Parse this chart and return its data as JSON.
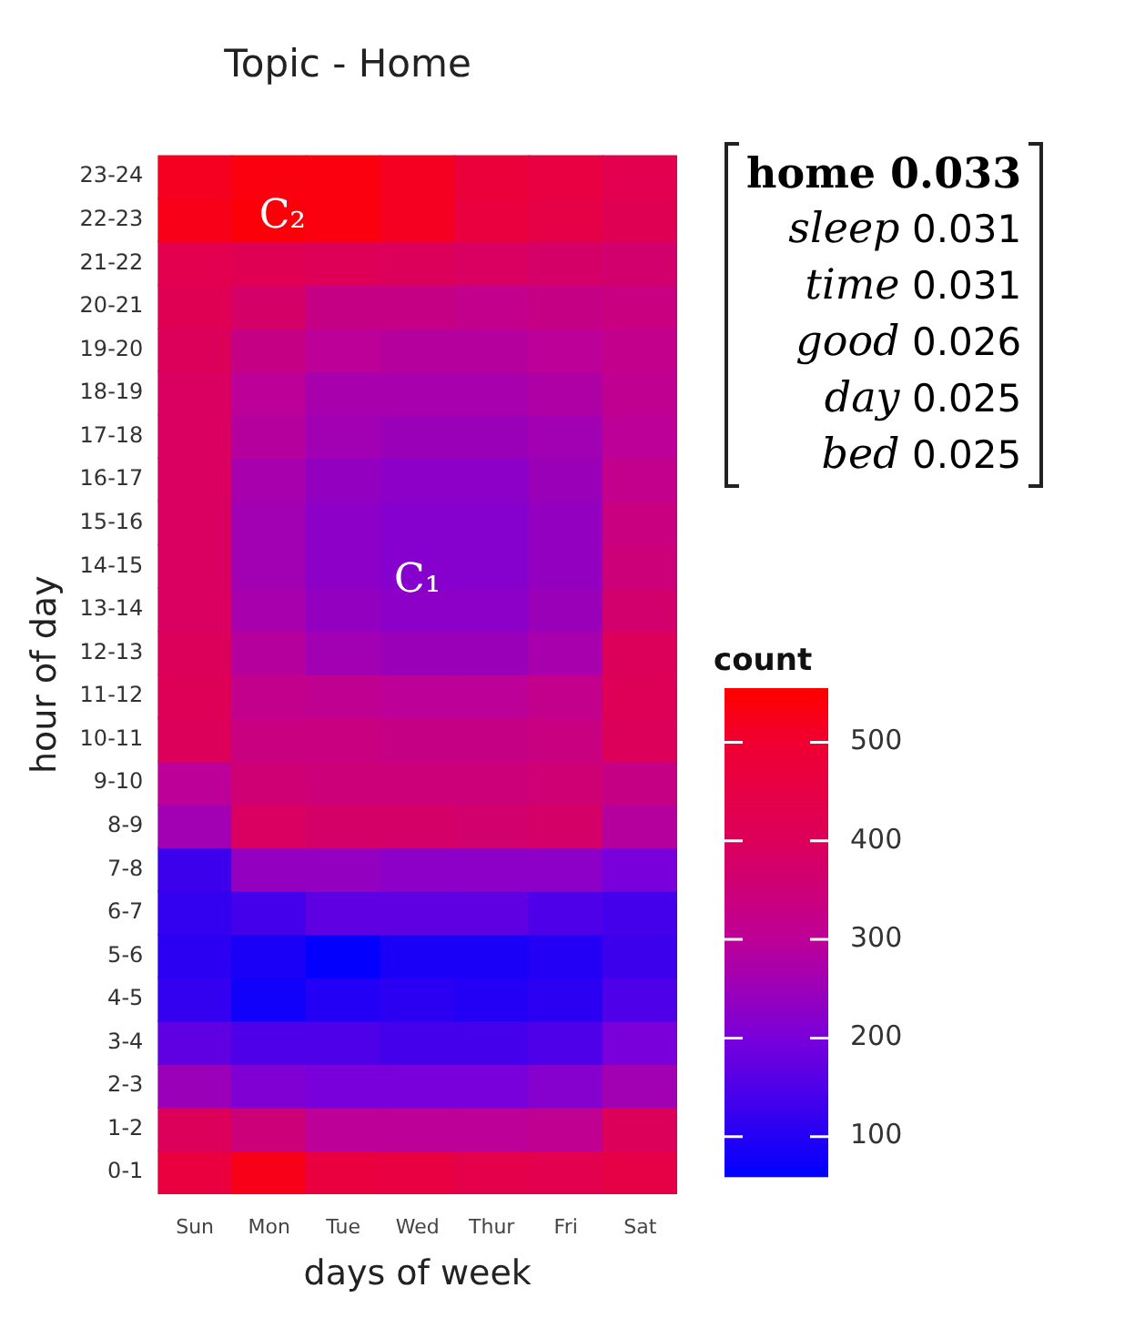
{
  "chart_data": {
    "type": "heatmap",
    "title": "Topic - Home",
    "xlabel": "days of week",
    "ylabel": "hour of day",
    "clabel": "count",
    "categories": [
      "Sun",
      "Mon",
      "Tue",
      "Wed",
      "Thur",
      "Fri",
      "Sat"
    ],
    "y_categories": [
      "23-24",
      "22-23",
      "21-22",
      "20-21",
      "19-20",
      "18-19",
      "17-18",
      "16-17",
      "15-16",
      "14-15",
      "13-14",
      "12-13",
      "11-12",
      "10-11",
      "9-10",
      "8-9",
      "7-8",
      "6-7",
      "5-6",
      "4-5",
      "3-4",
      "2-3",
      "1-2",
      "0-1"
    ],
    "cells": [
      [
        520,
        540,
        540,
        520,
        480,
        460,
        430
      ],
      [
        530,
        545,
        540,
        520,
        470,
        450,
        420
      ],
      [
        430,
        420,
        410,
        400,
        390,
        380,
        370
      ],
      [
        420,
        380,
        330,
        330,
        320,
        330,
        340
      ],
      [
        400,
        330,
        300,
        290,
        290,
        300,
        320
      ],
      [
        390,
        300,
        270,
        270,
        270,
        280,
        310
      ],
      [
        390,
        290,
        260,
        250,
        250,
        260,
        300
      ],
      [
        390,
        270,
        240,
        230,
        230,
        250,
        320
      ],
      [
        390,
        260,
        230,
        220,
        220,
        240,
        340
      ],
      [
        390,
        260,
        230,
        220,
        220,
        240,
        350
      ],
      [
        390,
        270,
        240,
        230,
        230,
        250,
        370
      ],
      [
        400,
        290,
        260,
        250,
        250,
        270,
        400
      ],
      [
        410,
        320,
        310,
        300,
        300,
        320,
        410
      ],
      [
        400,
        340,
        340,
        330,
        330,
        340,
        400
      ],
      [
        300,
        360,
        350,
        350,
        350,
        360,
        330
      ],
      [
        260,
        390,
        380,
        380,
        370,
        380,
        290
      ],
      [
        130,
        240,
        240,
        230,
        230,
        230,
        200
      ],
      [
        120,
        140,
        170,
        170,
        170,
        150,
        140
      ],
      [
        110,
        90,
        65,
        90,
        90,
        100,
        130
      ],
      [
        120,
        80,
        100,
        110,
        100,
        110,
        150
      ],
      [
        170,
        150,
        150,
        140,
        140,
        150,
        200
      ],
      [
        250,
        210,
        200,
        200,
        200,
        220,
        260
      ],
      [
        400,
        350,
        300,
        300,
        300,
        310,
        400
      ],
      [
        470,
        530,
        470,
        460,
        440,
        430,
        450
      ]
    ],
    "clim": [
      60,
      555
    ],
    "cticks": [
      100,
      200,
      300,
      400,
      500
    ],
    "annotations": [
      "C₂",
      "C₁",
      "home 0.033",
      "sleep 0.031",
      "time 0.031",
      "good 0.026",
      "day 0.025",
      "bed 0.025"
    ]
  }
}
